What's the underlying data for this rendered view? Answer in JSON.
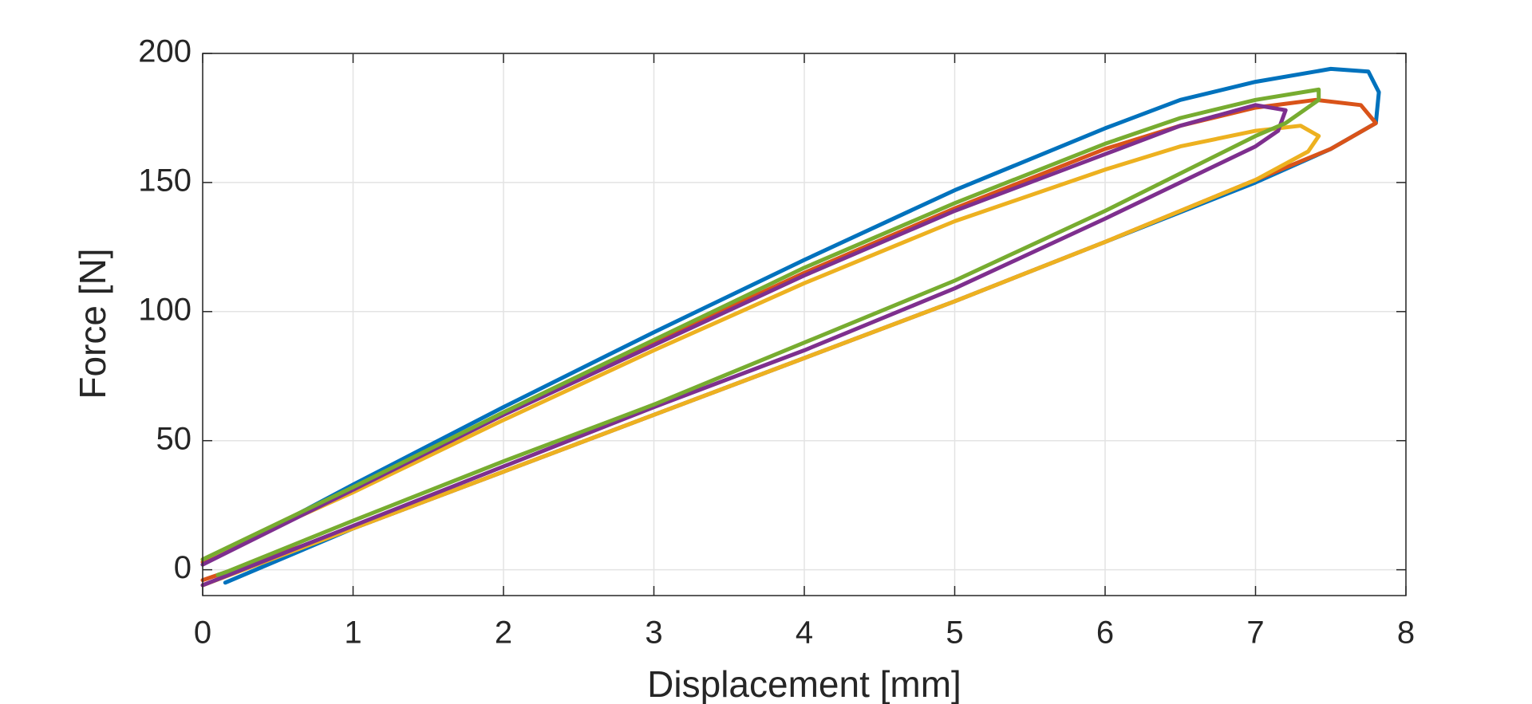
{
  "chart_data": {
    "type": "line",
    "xlabel": "Displacement [mm]",
    "ylabel": "Force [N]",
    "xlim": [
      0,
      8
    ],
    "xticks": [
      0,
      1,
      2,
      3,
      4,
      5,
      6,
      7,
      8
    ],
    "ylim": [
      -10,
      200
    ],
    "yticks": [
      0,
      50,
      100,
      150,
      200
    ],
    "grid": true,
    "series": [
      {
        "color": "#0072BD",
        "x": [
          0,
          1,
          2,
          3,
          4,
          5,
          6,
          6.5,
          7,
          7.5,
          7.75,
          7.82,
          7.8,
          7.5,
          7,
          6,
          5,
          4,
          3,
          2,
          1,
          0.15
        ],
        "values": [
          2,
          33,
          63,
          92,
          120,
          147,
          171,
          182,
          189,
          194,
          193,
          185,
          173,
          163,
          150,
          127,
          104,
          82,
          60,
          38,
          16,
          -5
        ]
      },
      {
        "color": "#D95319",
        "x": [
          0,
          1,
          2,
          3,
          4,
          5,
          6,
          6.5,
          7,
          7.4,
          7.7,
          7.8,
          7.5,
          7,
          6,
          5,
          4,
          3,
          2,
          1,
          0
        ],
        "values": [
          3,
          31,
          60,
          88,
          115,
          140,
          163,
          172,
          179,
          182,
          180,
          173,
          163,
          151,
          127,
          104,
          82,
          60,
          38,
          16,
          -4
        ]
      },
      {
        "color": "#EDB120",
        "x": [
          0,
          1,
          2,
          3,
          4,
          5,
          6,
          6.5,
          7,
          7.3,
          7.42,
          7.35,
          7,
          6,
          5,
          4,
          3,
          2,
          1,
          0
        ],
        "values": [
          4,
          30,
          58,
          85,
          111,
          135,
          155,
          164,
          170,
          172,
          168,
          162,
          151,
          127,
          104,
          82,
          60,
          38,
          16,
          -6
        ]
      },
      {
        "color": "#7E2F8E",
        "x": [
          0,
          1,
          2,
          3,
          4,
          5,
          6,
          6.5,
          7,
          7.2,
          7.15,
          7,
          6,
          5,
          4,
          3,
          2,
          1,
          0
        ],
        "values": [
          2,
          31,
          60,
          87,
          114,
          139,
          161,
          172,
          180,
          178,
          170,
          164,
          136,
          109,
          85,
          63,
          40,
          17,
          -6
        ]
      },
      {
        "color": "#77AC30",
        "x": [
          0,
          1,
          2,
          3,
          4,
          5,
          6,
          6.5,
          7,
          7.42,
          7.42,
          7.2,
          7,
          6,
          5,
          4,
          3,
          2,
          1,
          0.15,
          0.1
        ],
        "values": [
          4,
          32,
          61,
          89,
          117,
          142,
          165,
          175,
          182,
          186,
          182,
          173,
          168,
          139,
          112,
          88,
          64,
          42,
          19,
          -1,
          -2
        ]
      }
    ]
  }
}
